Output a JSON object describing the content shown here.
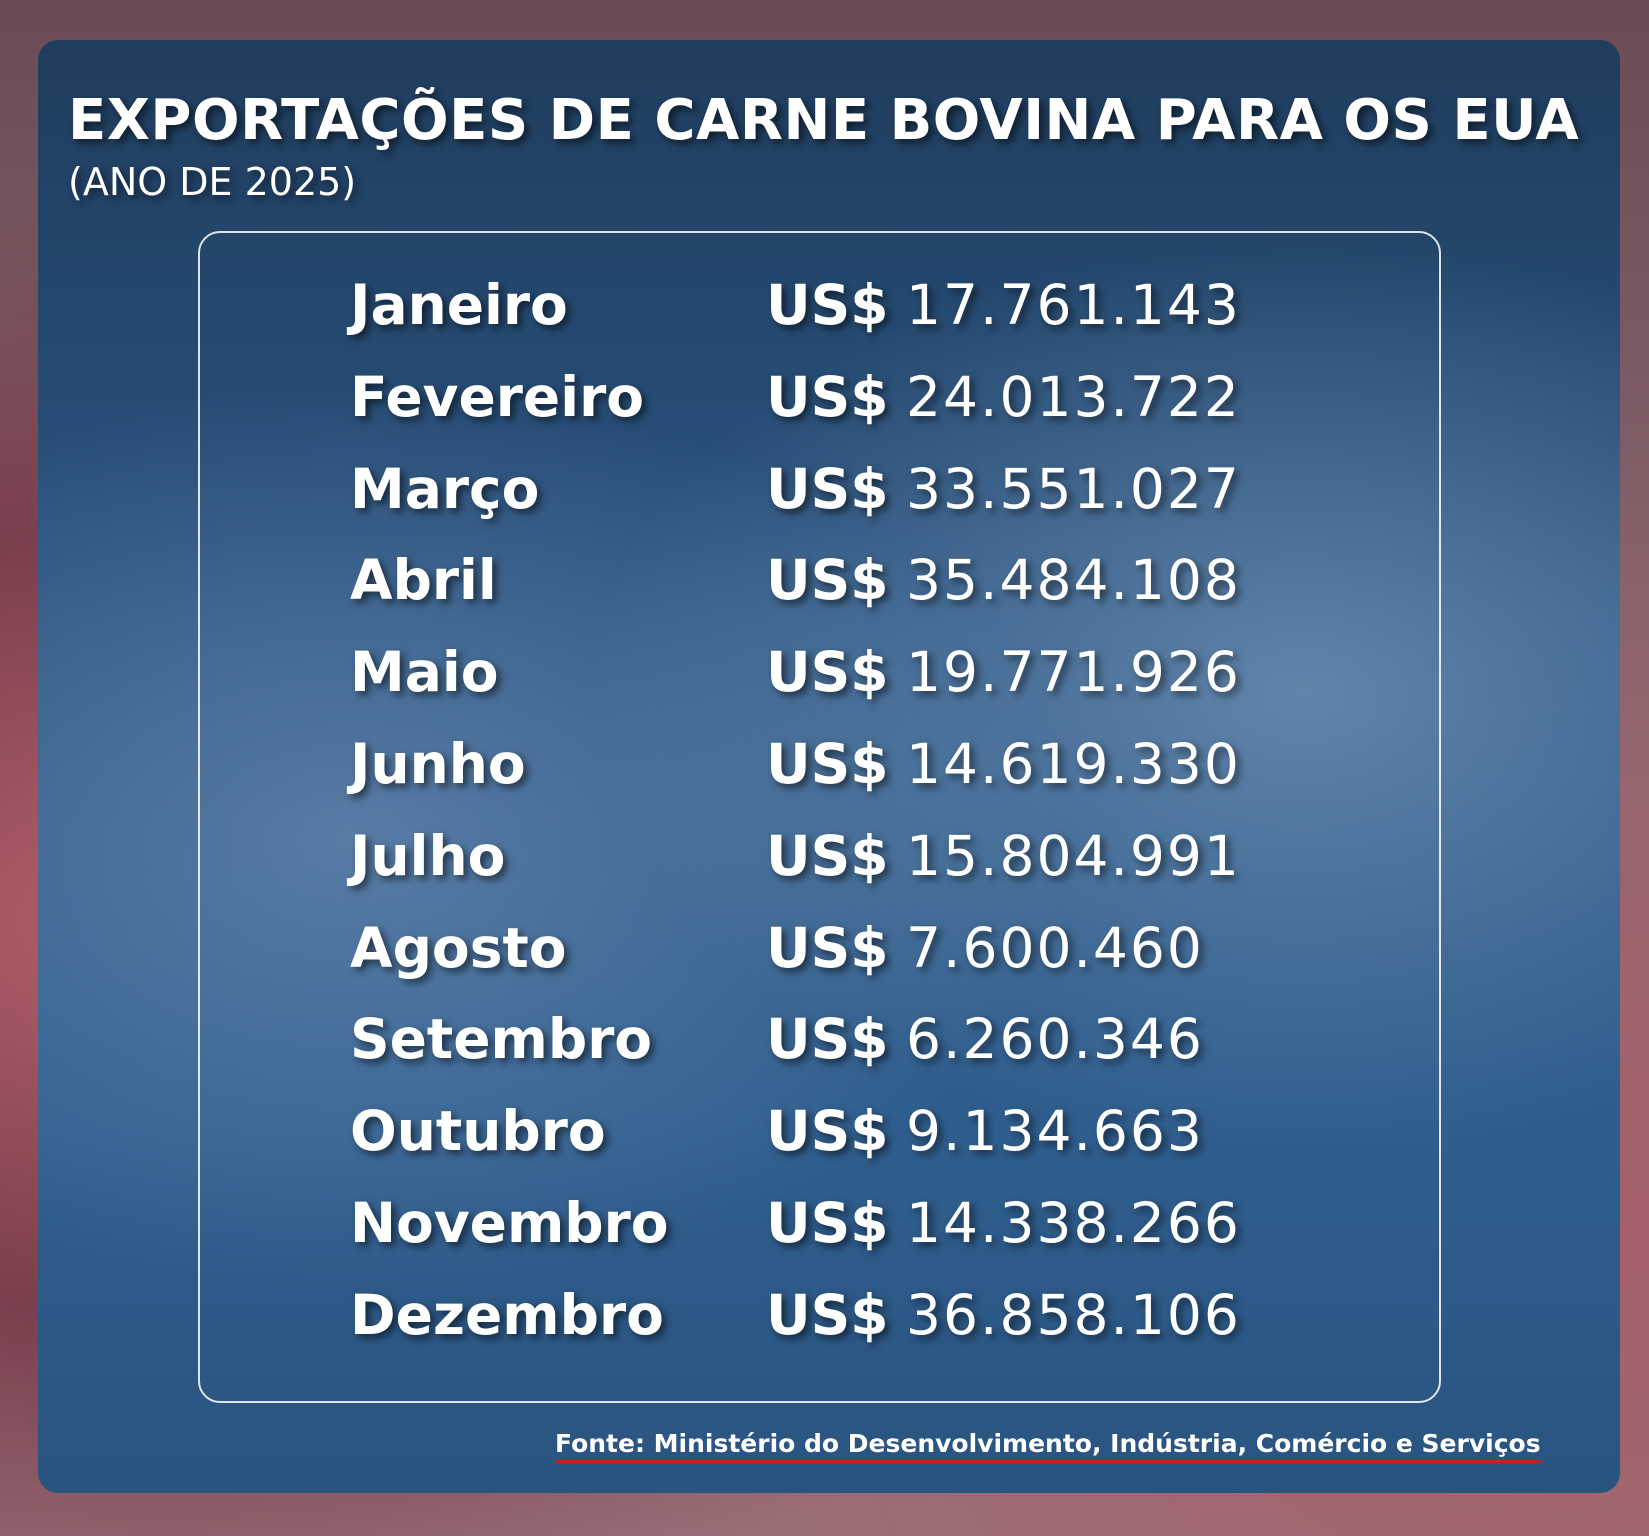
{
  "header": {
    "title": "EXPORTAÇÕES DE CARNE BOVINA PARA OS EUA",
    "subtitle": "(ANO DE 2025)"
  },
  "table": {
    "rows": [
      [
        "Janeiro",
        "US$",
        "17.761.143"
      ],
      [
        "Fevereiro",
        "US$",
        "24.013.722"
      ],
      [
        "Março",
        "US$",
        "33.551.027"
      ],
      [
        "Abril",
        "US$",
        "35.484.108"
      ],
      [
        "Maio",
        "US$",
        "19.771.926"
      ],
      [
        "Junho",
        "US$",
        "14.619.330"
      ],
      [
        "Julho",
        "US$",
        "15.804.991"
      ],
      [
        "Agosto",
        "US$",
        "7.600.460"
      ],
      [
        "Setembro",
        "US$",
        "6.260.346"
      ],
      [
        "Outubro",
        "US$",
        "9.134.663"
      ],
      [
        "Novembro",
        "US$",
        "14.338.266"
      ],
      [
        "Dezembro",
        "US$",
        "36.858.106"
      ]
    ]
  },
  "footer": {
    "source": "Fonte: Ministério do Desenvolvimento, Indústria, Comércio e Serviços"
  }
}
